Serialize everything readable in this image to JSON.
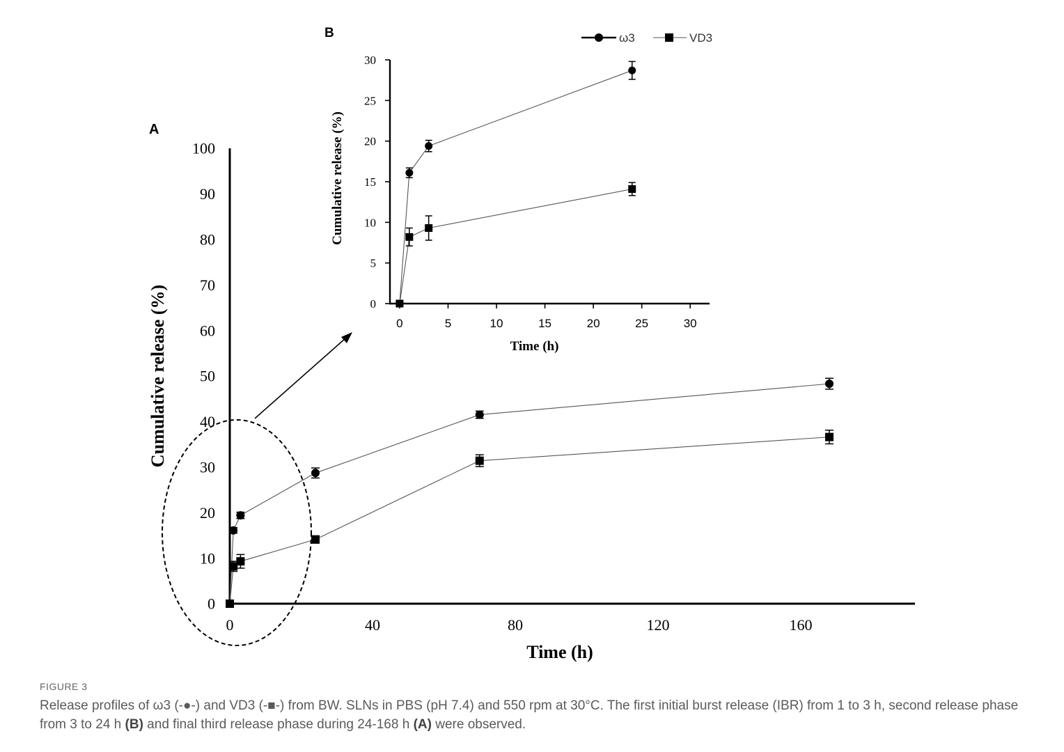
{
  "chart_data": [
    {
      "id": "A",
      "panel_label": "A",
      "type": "line",
      "xlabel": "Time (h)",
      "ylabel": "Cumulative release (%)",
      "xlim": [
        0,
        192
      ],
      "ylim": [
        0,
        100
      ],
      "xticks": [
        "0",
        "40",
        "80",
        "120",
        "160"
      ],
      "xtick_values": [
        0,
        40,
        80,
        120,
        160
      ],
      "yticks": [
        "0",
        "10",
        "20",
        "30",
        "40",
        "50",
        "60",
        "70",
        "80",
        "90",
        "100"
      ],
      "ytick_values": [
        0,
        10,
        20,
        30,
        40,
        50,
        60,
        70,
        80,
        90,
        100
      ],
      "series": [
        {
          "name": "ω3",
          "marker": "circle",
          "x": [
            0,
            1,
            3,
            24,
            70,
            168
          ],
          "y": [
            0,
            16.1,
            19.4,
            28.7,
            41.5,
            48.3
          ],
          "err": [
            0.3,
            0.6,
            0.7,
            1.1,
            0.8,
            1.2
          ]
        },
        {
          "name": "VD3",
          "marker": "square",
          "x": [
            0,
            1,
            3,
            24,
            70,
            168
          ],
          "y": [
            0,
            8.2,
            9.3,
            14.1,
            31.4,
            36.6
          ],
          "err": [
            0.3,
            1.1,
            1.5,
            0.8,
            1.3,
            1.5
          ]
        }
      ]
    },
    {
      "id": "B",
      "panel_label": "B",
      "type": "line",
      "xlabel": "Time (h)",
      "ylabel": "Cumulative release (%)",
      "xlim": [
        -1,
        32
      ],
      "ylim": [
        0,
        30
      ],
      "xticks": [
        "0",
        "5",
        "10",
        "15",
        "20",
        "25",
        "30"
      ],
      "xtick_values": [
        0,
        5,
        10,
        15,
        20,
        25,
        30
      ],
      "yticks": [
        "0",
        "5",
        "10",
        "15",
        "20",
        "25",
        "30"
      ],
      "ytick_values": [
        0,
        5,
        10,
        15,
        20,
        25,
        30
      ],
      "legend": "top-center",
      "series": [
        {
          "name": "ω3",
          "marker": "circle",
          "x": [
            0,
            1,
            3,
            24
          ],
          "y": [
            0,
            16.1,
            19.4,
            28.7
          ],
          "err": [
            0.3,
            0.6,
            0.7,
            1.1
          ]
        },
        {
          "name": "VD3",
          "marker": "square",
          "x": [
            0,
            1,
            3,
            24
          ],
          "y": [
            0,
            8.2,
            9.3,
            14.1
          ],
          "err": [
            0.3,
            1.1,
            1.5,
            0.8
          ]
        }
      ]
    }
  ],
  "caption": {
    "label": "FIGURE 3",
    "part1": "Release profiles of ω3 (-●-) and VD3 (-■-) from BW. SLNs in PBS (pH 7.4) and 550 rpm at 30°C. The first initial burst release (IBR) from 1 to 3 h, second release phase from 3 to 24 h ",
    "bold1": "(B)",
    "part2": " and final third release phase during 24-168 h ",
    "bold2": "(A)",
    "part3": " were observed."
  }
}
